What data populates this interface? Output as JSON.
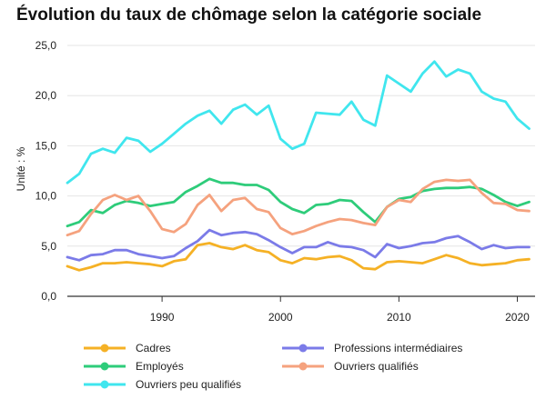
{
  "chart_data": {
    "type": "line",
    "title": "Évolution du taux de chômage selon la catégorie sociale",
    "xlabel": "",
    "ylabel": "Unité : %",
    "xlim": [
      1982,
      2021.5
    ],
    "ylim": [
      0,
      25
    ],
    "x_ticks": [
      1990,
      2000,
      2010,
      2020
    ],
    "y_ticks": [
      "0,0",
      "5,0",
      "10,0",
      "15,0",
      "20,0",
      "25,0"
    ],
    "y_tick_values": [
      0,
      5,
      10,
      15,
      20,
      25
    ],
    "grid": "horizontal",
    "legend_position": "bottom",
    "x": [
      1982,
      1983,
      1984,
      1985,
      1986,
      1987,
      1988,
      1989,
      1990,
      1991,
      1992,
      1993,
      1994,
      1995,
      1996,
      1997,
      1998,
      1999,
      2000,
      2001,
      2002,
      2003,
      2004,
      2005,
      2006,
      2007,
      2008,
      2009,
      2010,
      2011,
      2012,
      2013,
      2014,
      2015,
      2016,
      2017,
      2018,
      2019,
      2020,
      2021
    ],
    "series": [
      {
        "name": "Cadres",
        "color": "#f5b125",
        "values": [
          3.0,
          2.6,
          2.9,
          3.3,
          3.3,
          3.4,
          3.3,
          3.2,
          3.0,
          3.5,
          3.7,
          5.1,
          5.3,
          4.9,
          4.7,
          5.1,
          4.6,
          4.4,
          3.6,
          3.3,
          3.8,
          3.7,
          3.9,
          4.0,
          3.6,
          2.8,
          2.7,
          3.4,
          3.5,
          3.4,
          3.3,
          3.7,
          4.1,
          3.8,
          3.3,
          3.1,
          3.2,
          3.3,
          3.6,
          3.7
        ]
      },
      {
        "name": "Professions intermédiaires",
        "color": "#7b7be8",
        "values": [
          3.9,
          3.6,
          4.1,
          4.2,
          4.6,
          4.6,
          4.2,
          4.0,
          3.8,
          4.0,
          4.8,
          5.5,
          6.6,
          6.1,
          6.3,
          6.4,
          6.2,
          5.6,
          4.9,
          4.3,
          4.9,
          4.9,
          5.4,
          5.0,
          4.9,
          4.6,
          3.9,
          5.2,
          4.8,
          5.0,
          5.3,
          5.4,
          5.8,
          6.0,
          5.4,
          4.7,
          5.1,
          4.8,
          4.9,
          4.9
        ]
      },
      {
        "name": "Employés",
        "color": "#2ecc7a",
        "values": [
          7.0,
          7.4,
          8.6,
          8.3,
          9.1,
          9.5,
          9.3,
          9.0,
          9.2,
          9.4,
          10.4,
          11.0,
          11.7,
          11.3,
          11.3,
          11.1,
          11.1,
          10.6,
          9.4,
          8.7,
          8.3,
          9.1,
          9.2,
          9.6,
          9.5,
          8.4,
          7.4,
          8.9,
          9.7,
          9.9,
          10.5,
          10.7,
          10.8,
          10.8,
          10.9,
          10.7,
          10.1,
          9.4,
          9.0,
          9.4
        ]
      },
      {
        "name": "Ouvriers qualifiés",
        "color": "#f5a27e",
        "values": [
          6.1,
          6.5,
          8.2,
          9.6,
          10.1,
          9.6,
          10.0,
          8.5,
          6.7,
          6.4,
          7.2,
          9.1,
          10.1,
          8.5,
          9.6,
          9.8,
          8.7,
          8.4,
          6.8,
          6.2,
          6.5,
          7.0,
          7.4,
          7.7,
          7.6,
          7.3,
          7.1,
          8.9,
          9.6,
          9.4,
          10.7,
          11.4,
          11.6,
          11.5,
          11.6,
          10.3,
          9.3,
          9.2,
          8.6,
          8.5
        ]
      },
      {
        "name": "Ouvriers peu qualifiés",
        "color": "#40e6ee",
        "values": [
          11.3,
          12.2,
          14.2,
          14.7,
          14.3,
          15.8,
          15.5,
          14.4,
          15.2,
          16.2,
          17.2,
          18.0,
          18.5,
          17.2,
          18.6,
          19.1,
          18.1,
          19.0,
          15.7,
          14.7,
          15.2,
          18.3,
          18.2,
          18.1,
          19.4,
          17.6,
          17.0,
          22.0,
          21.2,
          20.4,
          22.2,
          23.4,
          21.9,
          22.6,
          22.2,
          20.4,
          19.7,
          19.4,
          17.7,
          16.7
        ]
      }
    ]
  }
}
